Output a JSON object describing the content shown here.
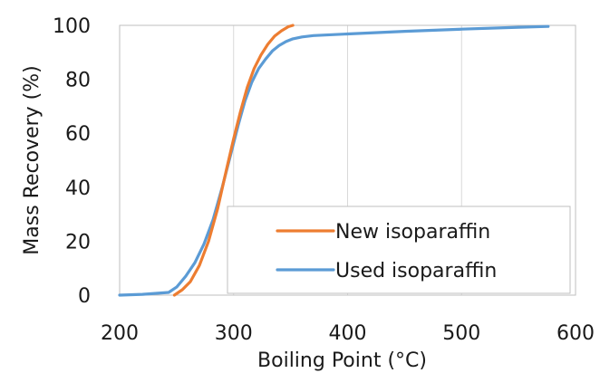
{
  "chart_data": {
    "type": "line",
    "xlabel": "Boiling Point (°C)",
    "ylabel": "Mass Recovery (%)",
    "xlim": [
      200,
      600
    ],
    "ylim": [
      0,
      100
    ],
    "xticks": [
      "200",
      "300",
      "400",
      "500",
      "600"
    ],
    "yticks": [
      "0",
      "20",
      "40",
      "60",
      "80",
      "100"
    ],
    "grid": "vertical",
    "legend_position": "lower-right",
    "series": [
      {
        "name": "New isoparaffin",
        "color": "#ED7D31",
        "x": [
          248,
          255,
          262,
          270,
          278,
          286,
          294,
          300,
          306,
          312,
          318,
          324,
          330,
          336,
          342,
          348,
          352
        ],
        "y": [
          0,
          2,
          5,
          11,
          20,
          32,
          47,
          58,
          68,
          77,
          84,
          89,
          93,
          96,
          98,
          99.5,
          100
        ]
      },
      {
        "name": "Used isoparaffin",
        "color": "#5B9BD5",
        "x": [
          200,
          220,
          243,
          250,
          258,
          266,
          274,
          282,
          290,
          298,
          304,
          310,
          316,
          322,
          328,
          334,
          340,
          346,
          352,
          360,
          370,
          400,
          450,
          500,
          550,
          576
        ],
        "y": [
          0,
          0.3,
          1,
          3,
          7,
          12,
          19,
          28,
          40,
          53,
          63,
          72,
          79,
          84,
          87.5,
          90.5,
          92.5,
          94,
          95,
          95.7,
          96.2,
          96.8,
          97.8,
          98.6,
          99.3,
          99.6
        ]
      }
    ]
  }
}
